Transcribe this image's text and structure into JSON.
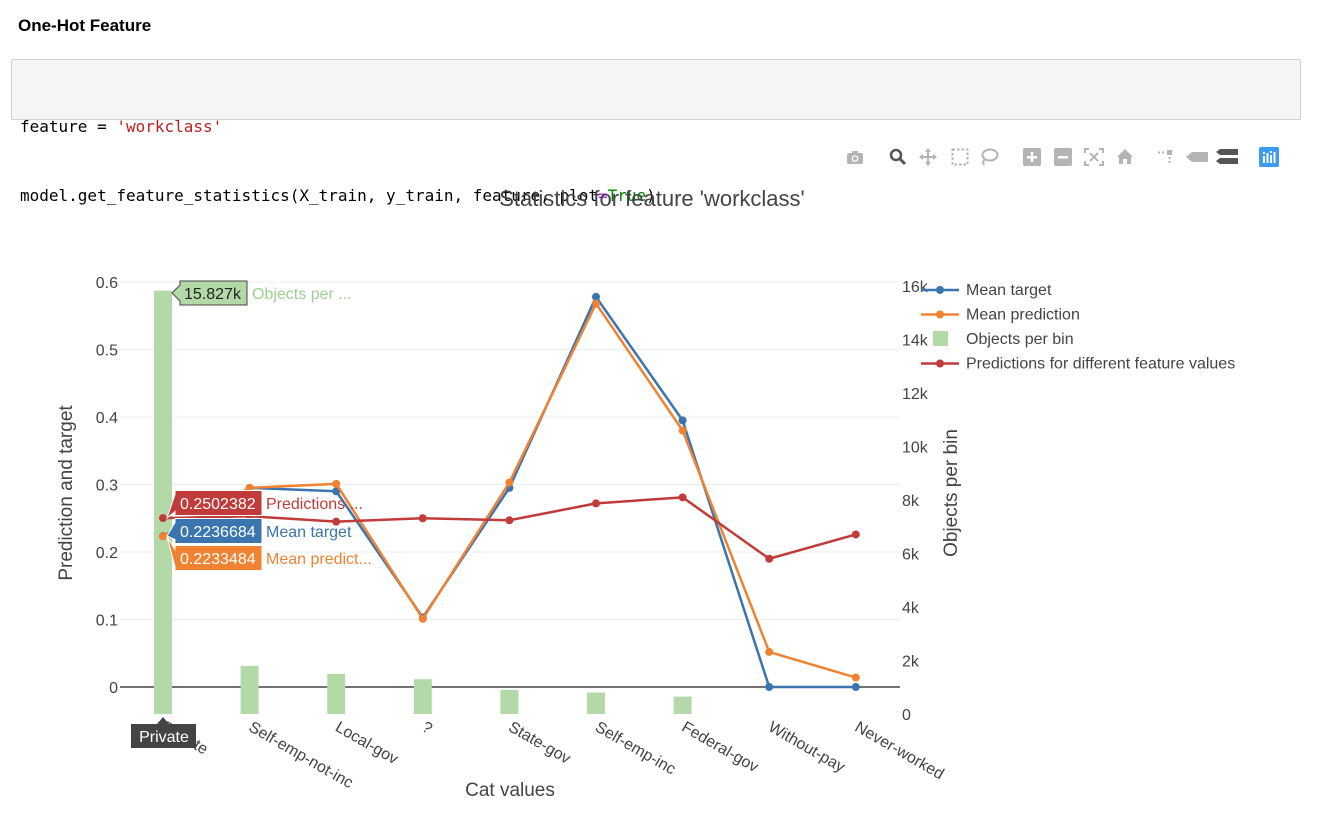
{
  "heading": "One-Hot Feature",
  "code": {
    "var_name": "feature",
    "assign": " = ",
    "var_value": "'workclass'",
    "call_prefix": "model.get_feature_statistics(X_train, y_train, feature, ",
    "kwarg_name": "plot",
    "kwarg_eq": "=",
    "kwarg_value": "True",
    "call_suffix": ")"
  },
  "toolbar": {
    "icons": [
      "camera-icon",
      "zoom-icon",
      "pan-icon",
      "box-select-icon",
      "lasso-icon",
      "zoom-in-icon",
      "zoom-out-icon",
      "autoscale-icon",
      "reset-axes-icon",
      "spike-lines-icon",
      "hover-closest-icon",
      "hover-compare-icon",
      "plotly-logo-icon"
    ]
  },
  "colors": {
    "mean_target": "#3a75b0",
    "mean_prediction": "#f08232",
    "objects": "#b3d9a9",
    "predictions": "#c23b3b"
  },
  "chart_data": {
    "type": "line",
    "title": "Statistics for feature 'workclass'",
    "xlabel": "Cat values",
    "ylabel": "Prediction and target",
    "y2label": "Objects per bin",
    "categories": [
      "Private",
      "Self-emp-not-inc",
      "Local-gov",
      "?",
      "State-gov",
      "Self-emp-inc",
      "Federal-gov",
      "Without-pay",
      "Never-worked"
    ],
    "ylim": [
      -0.04,
      0.6
    ],
    "yticks": [
      0,
      0.1,
      0.2,
      0.3,
      0.4,
      0.5,
      0.6
    ],
    "ytick_labels": [
      "0",
      "0.1",
      "0.2",
      "0.3",
      "0.4",
      "0.5",
      "0.6"
    ],
    "y2lim": [
      0,
      16000
    ],
    "y2ticks": [
      0,
      2000,
      4000,
      6000,
      8000,
      10000,
      12000,
      14000,
      16000
    ],
    "y2tick_labels": [
      "0",
      "2k",
      "4k",
      "6k",
      "8k",
      "10k",
      "12k",
      "14k",
      "16k"
    ],
    "series": [
      {
        "name": "Mean target",
        "axis": "y",
        "kind": "line",
        "color_key": "mean_target",
        "values": [
          0.2236684,
          0.295,
          0.29,
          0.103,
          0.295,
          0.578,
          0.395,
          0.0,
          0.0
        ]
      },
      {
        "name": "Mean prediction",
        "axis": "y",
        "kind": "line",
        "color_key": "mean_prediction",
        "values": [
          0.2233484,
          0.295,
          0.301,
          0.101,
          0.303,
          0.568,
          0.38,
          0.052,
          0.014
        ]
      },
      {
        "name": "Objects per bin",
        "axis": "y2",
        "kind": "bar",
        "color_key": "objects",
        "values": [
          15827,
          1800,
          1500,
          1300,
          900,
          800,
          650,
          0,
          0
        ]
      },
      {
        "name": "Predictions for different feature values",
        "axis": "y",
        "kind": "line",
        "color_key": "predictions",
        "values": [
          0.2502382,
          0.253,
          0.245,
          0.25,
          0.247,
          0.272,
          0.281,
          0.19,
          0.226
        ]
      }
    ],
    "legend_position": "top-right",
    "hover": {
      "category": "Private",
      "bar_label": "15.827k",
      "bar_name": "Objects per ...",
      "pred_label": "0.2502382",
      "pred_name": "Predictions ...",
      "target_label": "0.2236684",
      "target_name": "Mean target",
      "meanpred_label": "0.2233484",
      "meanpred_name": "Mean predict..."
    }
  }
}
